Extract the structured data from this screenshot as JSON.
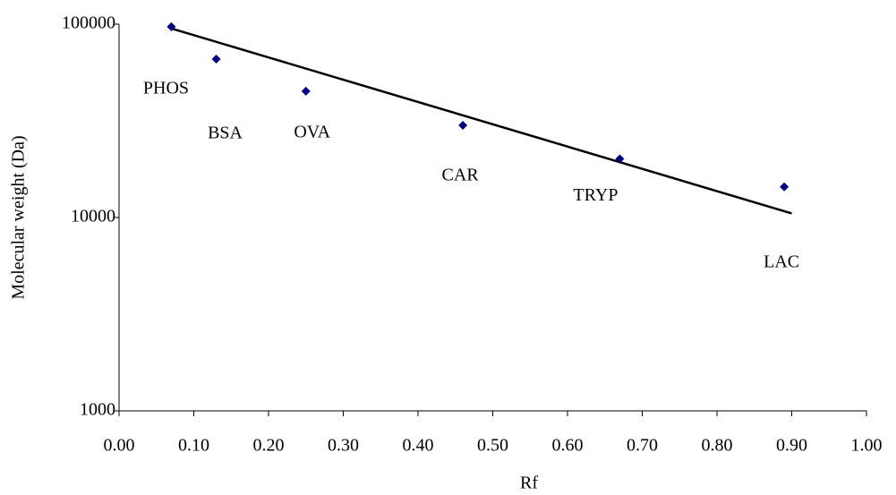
{
  "chart_data": {
    "type": "scatter",
    "x_label": "Rf",
    "y_label": "Molecular weight (Da)",
    "log_y": true,
    "grid": false,
    "xlim": [
      0,
      1
    ],
    "xticks": [
      {
        "value": 0,
        "label": "0.00"
      },
      {
        "value": 0.1,
        "label": "0.10"
      },
      {
        "value": 0.2,
        "label": "0.20"
      },
      {
        "value": 0.3,
        "label": "0.30"
      },
      {
        "value": 0.4,
        "label": "0.40"
      },
      {
        "value": 0.5,
        "label": "0.50"
      },
      {
        "value": 0.6,
        "label": "0.60"
      },
      {
        "value": 0.7,
        "label": "0.70"
      },
      {
        "value": 0.8,
        "label": "0.80"
      },
      {
        "value": 0.9,
        "label": "0.90"
      },
      {
        "value": 1,
        "label": "1.00"
      }
    ],
    "ylim": [
      1000,
      100000
    ],
    "yticks": [
      1000,
      10000,
      100000
    ],
    "series": [
      {
        "color": "#000080",
        "x": [
          0.07,
          0.13,
          0.25,
          0.46,
          0.67,
          0.89
        ],
        "values": [
          97000,
          66000,
          45000,
          30000,
          20100,
          14400
        ],
        "point_labels": [
          "PHOS",
          "BSA",
          "OVA",
          "CAR",
          "TRYP",
          "LAC"
        ]
      }
    ],
    "trendline": {
      "color": "#000000",
      "x": [
        0.07,
        0.9
      ],
      "values": [
        95000,
        10500
      ]
    }
  }
}
